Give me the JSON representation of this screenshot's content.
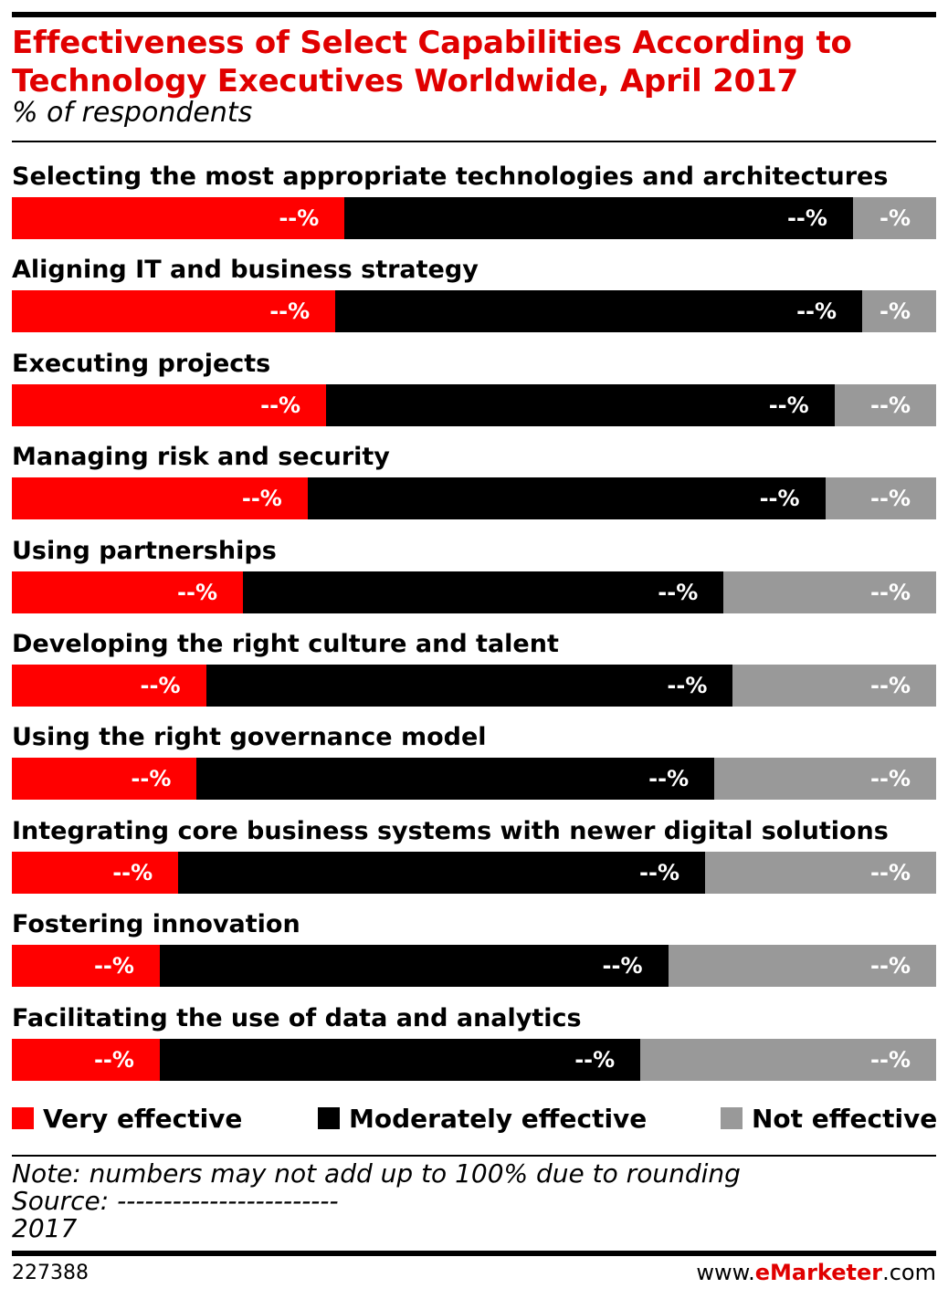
{
  "title": "Effectiveness of Select Capabilities According to Technology Executives Worldwide, April 2017",
  "subtitle": "% of respondents",
  "colors": {
    "very": "#ff0000",
    "moderately": "#000000",
    "not": "#999999",
    "title": "#e00000"
  },
  "chart_data": {
    "type": "bar",
    "orientation": "horizontal",
    "stacked": true,
    "categories": [
      "Selecting the most appropriate technologies and architectures",
      "Aligning IT and business strategy",
      "Executing projects",
      "Managing risk and security",
      "Using partnerships",
      "Developing the right culture and talent",
      "Using the right governance model",
      "Integrating core business systems with newer digital solutions",
      "Fostering innovation",
      "Facilitating the use of data and analytics"
    ],
    "series": [
      {
        "name": "Very effective",
        "values": [
          36,
          35,
          34,
          32,
          25,
          21,
          20,
          18,
          16,
          16
        ],
        "labels": [
          "--%",
          "--%",
          "--%",
          "--%",
          "--%",
          "--%",
          "--%",
          "--%",
          "--%",
          "--%"
        ]
      },
      {
        "name": "Moderately effective",
        "values": [
          55,
          57,
          55,
          56,
          52,
          57,
          56,
          57,
          55,
          52
        ],
        "labels": [
          "--%",
          "--%",
          "--%",
          "--%",
          "--%",
          "--%",
          "--%",
          "--%",
          "--%",
          "--%"
        ]
      },
      {
        "name": "Not effective",
        "values": [
          9,
          8,
          11,
          12,
          23,
          22,
          24,
          25,
          29,
          32
        ],
        "labels": [
          "-%",
          "-%",
          "--%",
          "--%",
          "--%",
          "--%",
          "--%",
          "--%",
          "--%",
          "--%"
        ]
      }
    ],
    "xlim": [
      0,
      100
    ],
    "legend_position": "bottom"
  },
  "legend": [
    {
      "label": "Very effective",
      "color": "#ff0000"
    },
    {
      "label": "Moderately effective",
      "color": "#000000"
    },
    {
      "label": "Not effective",
      "color": "#999999"
    }
  ],
  "note": "Note: numbers may not add up to 100% due to rounding",
  "source": "Source: ------------------------",
  "year": "2017",
  "chart_id": "227388",
  "brand": {
    "prefix": "www.",
    "name": "eMarketer",
    "suffix": ".com"
  }
}
